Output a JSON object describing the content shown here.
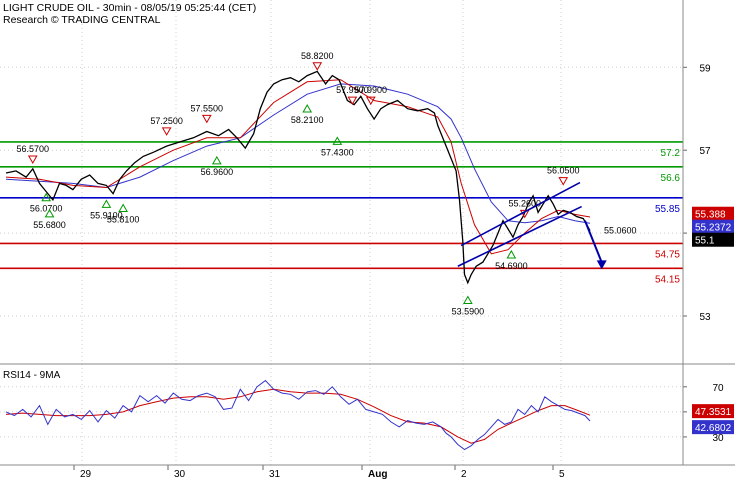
{
  "header": {
    "title": "LIGHT CRUDE OIL - 30min - 08/05/19 05:25:44 (CET)",
    "subtitle": "Research © TRADING CENTRAL"
  },
  "colors": {
    "price": "#000000",
    "ma_fast": "#cc0000",
    "ma_slow": "#3333cc",
    "resistance": "#009900",
    "pivot": "#0000cc",
    "support": "#cc0000",
    "channel": "#0000aa",
    "forecast_arrow": "#0000aa",
    "grid": "#cfcfcf",
    "badge_red": "#cc0000",
    "badge_blue": "#3333cc",
    "badge_black": "#000000"
  },
  "chart_data": [
    {
      "type": "line",
      "panel": "price",
      "title": "LIGHT CRUDE OIL - 30min",
      "x_axis": {
        "ticks": [
          "29",
          "30",
          "31",
          "Aug",
          "2",
          "5"
        ]
      },
      "y_axis": {
        "ticks": [
          53,
          55,
          57,
          59
        ],
        "ylim": [
          52.3,
          59.9
        ]
      },
      "grid": true,
      "price_series": [
        [
          0,
          56.45
        ],
        [
          6,
          56.5
        ],
        [
          12,
          56.35
        ],
        [
          16,
          56.55
        ],
        [
          20,
          56.2
        ],
        [
          24,
          56.0
        ],
        [
          28,
          55.8
        ],
        [
          32,
          56.2
        ],
        [
          36,
          56.15
        ],
        [
          40,
          56.05
        ],
        [
          45,
          56.3
        ],
        [
          50,
          56.4
        ],
        [
          55,
          56.2
        ],
        [
          60,
          56.15
        ],
        [
          64,
          55.95
        ],
        [
          68,
          56.3
        ],
        [
          72,
          56.5
        ],
        [
          77,
          56.7
        ],
        [
          82,
          56.85
        ],
        [
          88,
          56.95
        ],
        [
          96,
          57.1
        ],
        [
          104,
          57.2
        ],
        [
          112,
          57.3
        ],
        [
          120,
          57.45
        ],
        [
          127,
          57.35
        ],
        [
          133,
          57.5
        ],
        [
          138,
          57.3
        ],
        [
          143,
          57.05
        ],
        [
          148,
          57.4
        ],
        [
          152,
          58.0
        ],
        [
          156,
          58.4
        ],
        [
          160,
          58.6
        ],
        [
          165,
          58.7
        ],
        [
          170,
          58.75
        ],
        [
          175,
          58.65
        ],
        [
          180,
          58.8
        ],
        [
          186,
          58.9
        ],
        [
          191,
          58.6
        ],
        [
          195,
          58.8
        ],
        [
          199,
          58.7
        ],
        [
          204,
          58.2
        ],
        [
          208,
          58.1
        ],
        [
          212,
          58.3
        ],
        [
          216,
          58.0
        ],
        [
          220,
          57.75
        ],
        [
          224,
          58.0
        ],
        [
          228,
          58.1
        ],
        [
          234,
          58.2
        ],
        [
          240,
          58.0
        ],
        [
          246,
          57.95
        ],
        [
          252,
          58.0
        ],
        [
          256,
          57.9
        ],
        [
          258,
          57.6
        ],
        [
          262,
          57.2
        ],
        [
          266,
          56.8
        ],
        [
          269,
          56.5
        ],
        [
          271,
          55.8
        ],
        [
          273,
          54.8
        ],
        [
          274,
          54.0
        ],
        [
          276,
          53.8
        ],
        [
          278,
          54.0
        ],
        [
          281,
          54.2
        ],
        [
          285,
          54.3
        ],
        [
          288,
          54.5
        ],
        [
          291,
          54.7
        ],
        [
          294,
          55.0
        ],
        [
          297,
          55.3
        ],
        [
          300,
          55.1
        ],
        [
          303,
          54.9
        ],
        [
          306,
          55.2
        ],
        [
          309,
          55.4
        ],
        [
          312,
          55.7
        ],
        [
          315,
          55.9
        ],
        [
          318,
          55.5
        ],
        [
          321,
          55.7
        ],
        [
          324,
          55.9
        ],
        [
          327,
          55.7
        ],
        [
          330,
          55.45
        ],
        [
          333,
          55.55
        ],
        [
          337,
          55.5
        ],
        [
          341,
          55.4
        ],
        [
          345,
          55.35
        ],
        [
          349,
          55.06
        ]
      ],
      "ma_fast_series": [
        [
          0,
          56.35
        ],
        [
          20,
          56.3
        ],
        [
          40,
          56.15
        ],
        [
          60,
          56.1
        ],
        [
          80,
          56.6
        ],
        [
          100,
          57.0
        ],
        [
          120,
          57.3
        ],
        [
          140,
          57.3
        ],
        [
          160,
          58.15
        ],
        [
          180,
          58.65
        ],
        [
          200,
          58.7
        ],
        [
          220,
          58.2
        ],
        [
          240,
          58.05
        ],
        [
          258,
          57.8
        ],
        [
          266,
          57.2
        ],
        [
          272,
          56.2
        ],
        [
          280,
          55.2
        ],
        [
          290,
          54.5
        ],
        [
          300,
          54.6
        ],
        [
          310,
          55.0
        ],
        [
          320,
          55.35
        ],
        [
          330,
          55.55
        ],
        [
          340,
          55.45
        ],
        [
          349,
          55.388
        ]
      ],
      "ma_slow_series": [
        [
          0,
          56.3
        ],
        [
          20,
          56.25
        ],
        [
          40,
          56.2
        ],
        [
          60,
          56.1
        ],
        [
          80,
          56.35
        ],
        [
          100,
          56.75
        ],
        [
          120,
          57.1
        ],
        [
          140,
          57.3
        ],
        [
          160,
          57.85
        ],
        [
          180,
          58.35
        ],
        [
          200,
          58.6
        ],
        [
          220,
          58.55
        ],
        [
          240,
          58.35
        ],
        [
          258,
          58.05
        ],
        [
          266,
          57.75
        ],
        [
          272,
          57.3
        ],
        [
          280,
          56.55
        ],
        [
          290,
          55.75
        ],
        [
          300,
          55.3
        ],
        [
          310,
          55.25
        ],
        [
          320,
          55.3
        ],
        [
          330,
          55.4
        ],
        [
          340,
          55.3
        ],
        [
          349,
          55.2372
        ]
      ],
      "horizontal_levels": [
        {
          "value": 57.2,
          "label": "57.2",
          "kind": "resistance"
        },
        {
          "value": 56.6,
          "label": "56.6",
          "kind": "resistance"
        },
        {
          "value": 55.85,
          "label": "55.85",
          "kind": "pivot"
        },
        {
          "value": 54.75,
          "label": "54.75",
          "kind": "support"
        },
        {
          "value": 54.15,
          "label": "54.15",
          "kind": "support"
        }
      ],
      "last_values": [
        {
          "value": 55.388,
          "label": "55.388",
          "color_key": "badge_red"
        },
        {
          "value": 55.2372,
          "label": "55.2372",
          "color_key": "badge_blue"
        },
        {
          "value": 55.1,
          "label": "55.1",
          "color_key": "badge_black"
        }
      ],
      "annotations": [
        {
          "x": 186,
          "value": 58.82,
          "label": "58.8200",
          "kind": "high"
        },
        {
          "x": 180,
          "value": 58.21,
          "label": "58.2100",
          "kind": "low"
        },
        {
          "x": 16,
          "value": 56.57,
          "label": "56.5700",
          "kind": "high"
        },
        {
          "x": 24,
          "value": 56.07,
          "label": "56.0700",
          "kind": "low"
        },
        {
          "x": 26,
          "value": 55.68,
          "label": "55.6800",
          "kind": "low"
        },
        {
          "x": 60,
          "value": 55.91,
          "label": "55.9100",
          "kind": "low"
        },
        {
          "x": 70,
          "value": 55.81,
          "label": "55.8100",
          "kind": "low"
        },
        {
          "x": 96,
          "value": 57.25,
          "label": "57.2500",
          "kind": "high"
        },
        {
          "x": 120,
          "value": 57.55,
          "label": "57.5500",
          "kind": "high"
        },
        {
          "x": 126,
          "value": 56.96,
          "label": "56.9600",
          "kind": "low"
        },
        {
          "x": 198,
          "value": 57.43,
          "label": "57.4300",
          "kind": "low"
        },
        {
          "x": 207,
          "value": 57.99,
          "label": "57.9900",
          "kind": "high"
        },
        {
          "x": 218,
          "value": 57.99,
          "label": "57.9900",
          "kind": "high"
        },
        {
          "x": 276,
          "value": 53.59,
          "label": "53.5900",
          "kind": "low"
        },
        {
          "x": 310,
          "value": 55.26,
          "label": "55.2600",
          "kind": "high"
        },
        {
          "x": 302,
          "value": 54.69,
          "label": "54.6900",
          "kind": "low"
        },
        {
          "x": 333,
          "value": 56.05,
          "label": "56.0500",
          "kind": "high"
        },
        {
          "x": 349,
          "value": 55.06,
          "label": "55.0600",
          "kind": "last"
        }
      ],
      "channel": {
        "upper": [
          [
            272,
            54.7
          ],
          [
            343,
            56.22
          ]
        ],
        "lower": [
          [
            270,
            54.2
          ],
          [
            344,
            55.64
          ]
        ]
      },
      "forecast_arrow": [
        [
          346,
          55.3
        ],
        [
          356,
          54.15
        ]
      ]
    },
    {
      "type": "line",
      "panel": "oscillator",
      "title": "RSI14 - 9MA",
      "y_axis": {
        "ticks": [
          30,
          50,
          70
        ],
        "ylim": [
          10,
          85
        ]
      },
      "grid": true,
      "rsi_series": [
        [
          0,
          50
        ],
        [
          5,
          47
        ],
        [
          10,
          52
        ],
        [
          15,
          46
        ],
        [
          20,
          55
        ],
        [
          25,
          40
        ],
        [
          30,
          52
        ],
        [
          35,
          46
        ],
        [
          40,
          48
        ],
        [
          45,
          44
        ],
        [
          50,
          51
        ],
        [
          55,
          42
        ],
        [
          60,
          51
        ],
        [
          65,
          45
        ],
        [
          70,
          55
        ],
        [
          75,
          50
        ],
        [
          80,
          63
        ],
        [
          85,
          58
        ],
        [
          90,
          63
        ],
        [
          95,
          57
        ],
        [
          100,
          65
        ],
        [
          105,
          60
        ],
        [
          110,
          59
        ],
        [
          115,
          63
        ],
        [
          120,
          65
        ],
        [
          125,
          62
        ],
        [
          130,
          52
        ],
        [
          135,
          53
        ],
        [
          140,
          68
        ],
        [
          145,
          59
        ],
        [
          150,
          70
        ],
        [
          155,
          75
        ],
        [
          160,
          68
        ],
        [
          165,
          65
        ],
        [
          170,
          64
        ],
        [
          175,
          60
        ],
        [
          180,
          66
        ],
        [
          185,
          67
        ],
        [
          190,
          64
        ],
        [
          195,
          70
        ],
        [
          200,
          62
        ],
        [
          205,
          56
        ],
        [
          210,
          60
        ],
        [
          215,
          52
        ],
        [
          220,
          50
        ],
        [
          225,
          48
        ],
        [
          230,
          42
        ],
        [
          235,
          38
        ],
        [
          240,
          43
        ],
        [
          245,
          41
        ],
        [
          250,
          40
        ],
        [
          255,
          42
        ],
        [
          260,
          38
        ],
        [
          263,
          33
        ],
        [
          266,
          30
        ],
        [
          270,
          24
        ],
        [
          274,
          20
        ],
        [
          278,
          23
        ],
        [
          282,
          28
        ],
        [
          286,
          32
        ],
        [
          290,
          38
        ],
        [
          294,
          44
        ],
        [
          298,
          40
        ],
        [
          302,
          42
        ],
        [
          306,
          52
        ],
        [
          310,
          48
        ],
        [
          314,
          55
        ],
        [
          318,
          50
        ],
        [
          322,
          62
        ],
        [
          326,
          58
        ],
        [
          330,
          55
        ],
        [
          334,
          52
        ],
        [
          338,
          51
        ],
        [
          342,
          49
        ],
        [
          346,
          47
        ],
        [
          349,
          42.68
        ]
      ],
      "ma_series": [
        [
          0,
          48
        ],
        [
          10,
          49
        ],
        [
          20,
          48
        ],
        [
          30,
          47
        ],
        [
          40,
          47
        ],
        [
          50,
          47
        ],
        [
          60,
          48
        ],
        [
          70,
          50
        ],
        [
          80,
          55
        ],
        [
          90,
          58
        ],
        [
          100,
          61
        ],
        [
          110,
          62
        ],
        [
          120,
          62
        ],
        [
          130,
          60
        ],
        [
          140,
          62
        ],
        [
          150,
          66
        ],
        [
          160,
          68
        ],
        [
          170,
          66
        ],
        [
          180,
          65
        ],
        [
          190,
          65
        ],
        [
          200,
          64
        ],
        [
          210,
          60
        ],
        [
          220,
          54
        ],
        [
          230,
          47
        ],
        [
          240,
          42
        ],
        [
          250,
          41
        ],
        [
          260,
          38
        ],
        [
          270,
          30
        ],
        [
          278,
          25
        ],
        [
          286,
          28
        ],
        [
          294,
          36
        ],
        [
          302,
          41
        ],
        [
          310,
          46
        ],
        [
          318,
          51
        ],
        [
          326,
          55
        ],
        [
          334,
          55
        ],
        [
          342,
          51
        ],
        [
          349,
          47.35
        ]
      ],
      "last_values": [
        {
          "value": 47.3531,
          "label": "47.3531",
          "color_key": "badge_red"
        },
        {
          "value": 42.6802,
          "label": "42.6802",
          "color_key": "badge_blue"
        }
      ]
    }
  ]
}
